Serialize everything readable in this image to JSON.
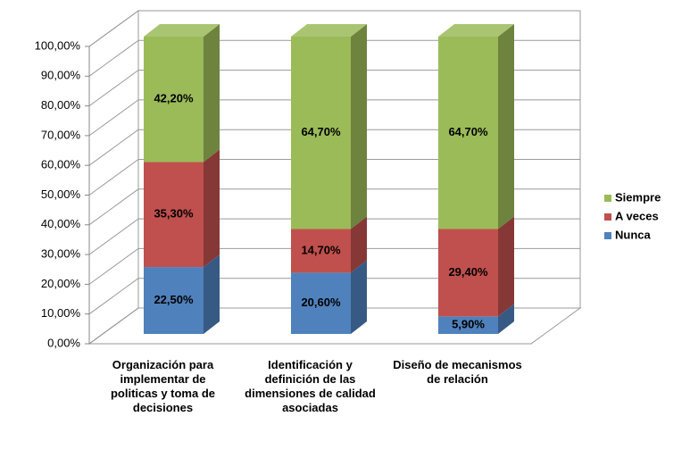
{
  "chart_data": {
    "type": "bar",
    "stacked": true,
    "categories": [
      "Organización para implementar de politicas y toma de decisiones",
      "Identificación y definición de las dimensiones de calidad asociadas",
      "Diseño de mecanismos de relación"
    ],
    "series": [
      {
        "name": "Nunca",
        "color": "#4f81bd",
        "values": [
          22.5,
          20.6,
          5.9
        ],
        "value_labels": [
          "22,50%",
          "20,60%",
          "5,90%"
        ]
      },
      {
        "name": "A veces",
        "color": "#c0504d",
        "values": [
          35.3,
          14.7,
          29.4
        ],
        "value_labels": [
          "35,30%",
          "14,70%",
          "29,40%"
        ]
      },
      {
        "name": "Siempre",
        "color": "#9bbb59",
        "values": [
          42.2,
          64.7,
          64.7
        ],
        "value_labels": [
          "42,20%",
          "64,70%",
          "64,70%"
        ]
      }
    ],
    "ylim": [
      0,
      100
    ],
    "yticks": [
      {
        "value": 0,
        "label": "0,00%"
      },
      {
        "value": 10,
        "label": "10,00%"
      },
      {
        "value": 20,
        "label": "20,00%"
      },
      {
        "value": 30,
        "label": "30,00%"
      },
      {
        "value": 40,
        "label": "40,00%"
      },
      {
        "value": 50,
        "label": "50,00%"
      },
      {
        "value": 60,
        "label": "60,00%"
      },
      {
        "value": 70,
        "label": "70,00%"
      },
      {
        "value": 80,
        "label": "80,00%"
      },
      {
        "value": 90,
        "label": "90,00%"
      },
      {
        "value": 100,
        "label": "100,00%"
      }
    ],
    "grid": true,
    "legend": "right"
  }
}
